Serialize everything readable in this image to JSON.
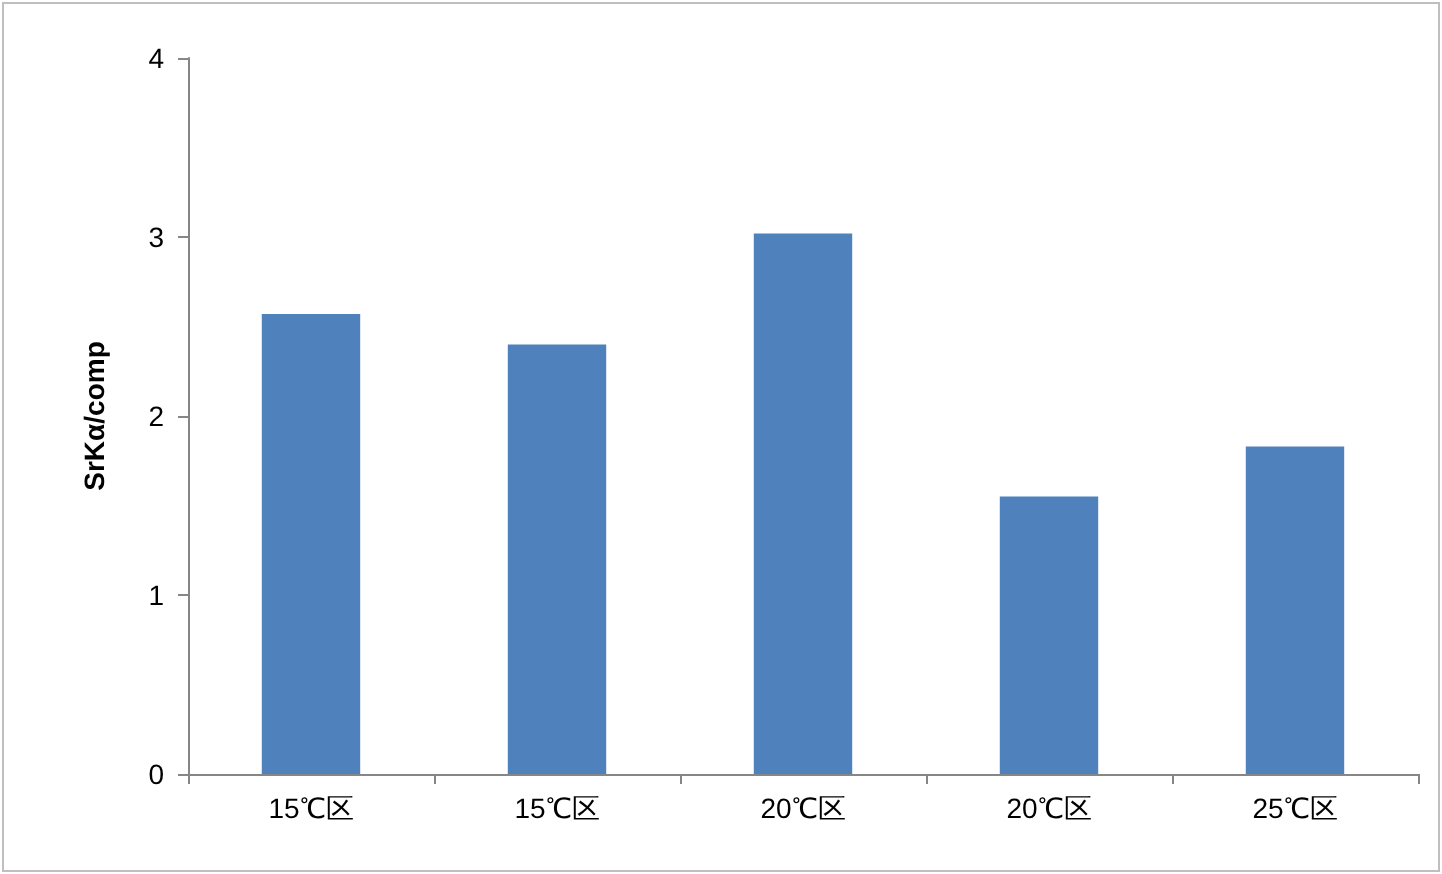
{
  "chart_data": {
    "type": "bar",
    "ylabel": "SrKα/comp",
    "categories": [
      "15℃区",
      "15℃区",
      "20℃区",
      "20℃区",
      "25℃区"
    ],
    "values": [
      2.57,
      2.4,
      3.02,
      1.55,
      1.83
    ],
    "color": "#4f81bd",
    "ylim": [
      0,
      4
    ],
    "yticks": [
      0,
      1,
      2,
      3,
      4
    ],
    "grid": false
  }
}
